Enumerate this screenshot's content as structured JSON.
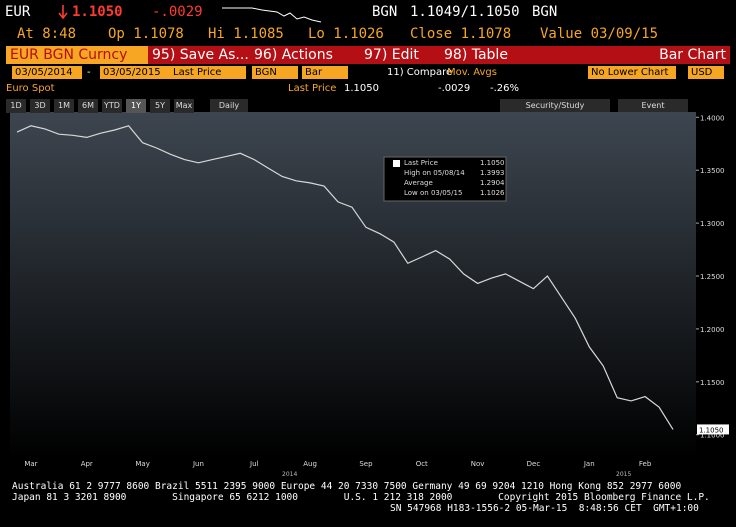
{
  "header": {
    "ticker": "EUR",
    "last": "1.1050",
    "change": "-.0029",
    "currency": "BGN",
    "bid_ask": "1.1049/1.1050",
    "currency2": "BGN",
    "at": "At 8:48",
    "open": "Op 1.1078",
    "high": "Hi 1.1085",
    "low": "Lo 1.1026",
    "close": "Close 1.1078",
    "value": "Value 03/09/15"
  },
  "toolbar": {
    "security": "EUR BGN Curncy",
    "save": "95) Save As...",
    "actions": "96) Actions",
    "edit": "97) Edit",
    "table": "98) Table",
    "chart_type": "Bar Chart"
  },
  "settings": {
    "start": "03/05/2014",
    "dash": "-",
    "end": "03/05/2015",
    "field": "Last Price",
    "currency": "BGN",
    "style": "Bar",
    "compare": "11) Compare",
    "studies": "Mov. Avgs",
    "lower": "No Lower Chart",
    "fx": "USD"
  },
  "summary": {
    "name": "Euro Spot",
    "field": "Last Price",
    "last": "1.1050",
    "change": "-.0029",
    "pct": "-.26%"
  },
  "buttons": {
    "periods": [
      "1D",
      "3D",
      "1M",
      "6M",
      "YTD",
      "1Y",
      "5Y",
      "Max"
    ],
    "frequency": "Daily",
    "study": "Security/Study",
    "event": "Event"
  },
  "chart_data": {
    "type": "line",
    "color": "#d8d8d8",
    "categories": [
      null,
      "Mar",
      null,
      null,
      null,
      "Apr",
      null,
      null,
      null,
      "May",
      null,
      null,
      null,
      "Jun",
      null,
      null,
      null,
      "Jul",
      null,
      null,
      null,
      "Aug",
      null,
      null,
      null,
      "Sep",
      null,
      null,
      null,
      "Oct",
      null,
      null,
      null,
      "Nov",
      null,
      null,
      null,
      "Dec",
      null,
      null,
      null,
      "Jan",
      null,
      null,
      null,
      "Feb",
      null,
      null
    ],
    "values": [
      1.386,
      1.392,
      1.389,
      1.384,
      1.383,
      1.381,
      1.385,
      1.388,
      1.392,
      1.376,
      1.371,
      1.365,
      1.36,
      1.357,
      1.36,
      1.363,
      1.366,
      1.36,
      1.352,
      1.344,
      1.34,
      1.338,
      1.335,
      1.32,
      1.315,
      1.296,
      1.29,
      1.282,
      1.262,
      1.268,
      1.274,
      1.266,
      1.252,
      1.243,
      1.248,
      1.252,
      1.245,
      1.238,
      1.25,
      1.23,
      1.21,
      1.183,
      1.165,
      1.135,
      1.132,
      1.136,
      1.126,
      1.105
    ],
    "years": [
      "2014",
      "2015"
    ],
    "ylim": [
      1.078,
      1.405
    ],
    "yticks": [
      {
        "value": 1.4,
        "label": "1.4000"
      },
      {
        "value": 1.35,
        "label": "1.3500"
      },
      {
        "value": 1.3,
        "label": "1.3000"
      },
      {
        "value": 1.25,
        "label": "1.2500"
      },
      {
        "value": 1.2,
        "label": "1.2000"
      },
      {
        "value": 1.15,
        "label": "1.1500"
      },
      {
        "value": 1.1,
        "label": "1.1000"
      }
    ],
    "last_tag": "1.1050",
    "legend": {
      "last": "Last Price",
      "last_v": "1.1050",
      "high": "High on 05/08/14",
      "high_v": "1.3993",
      "avg": "Average",
      "avg_v": "1.2904",
      "low": "Low on 03/05/15",
      "low_v": "1.1026"
    }
  },
  "footer": [
    "Australia 61 2 9777 8600 Brazil 5511 2395 9000 Europe 44 20 7330 7500 Germany 49 69 9204 1210 Hong Kong 852 2977 6000",
    "Japan 81 3 3201 8900        Singapore 65 6212 1000        U.S. 1 212 318 2000        Copyright 2015 Bloomberg Finance L.P.",
    "SN 547968 H183-1556-2 05-Mar-15  8:48:56 CET  GMT+1:00"
  ]
}
